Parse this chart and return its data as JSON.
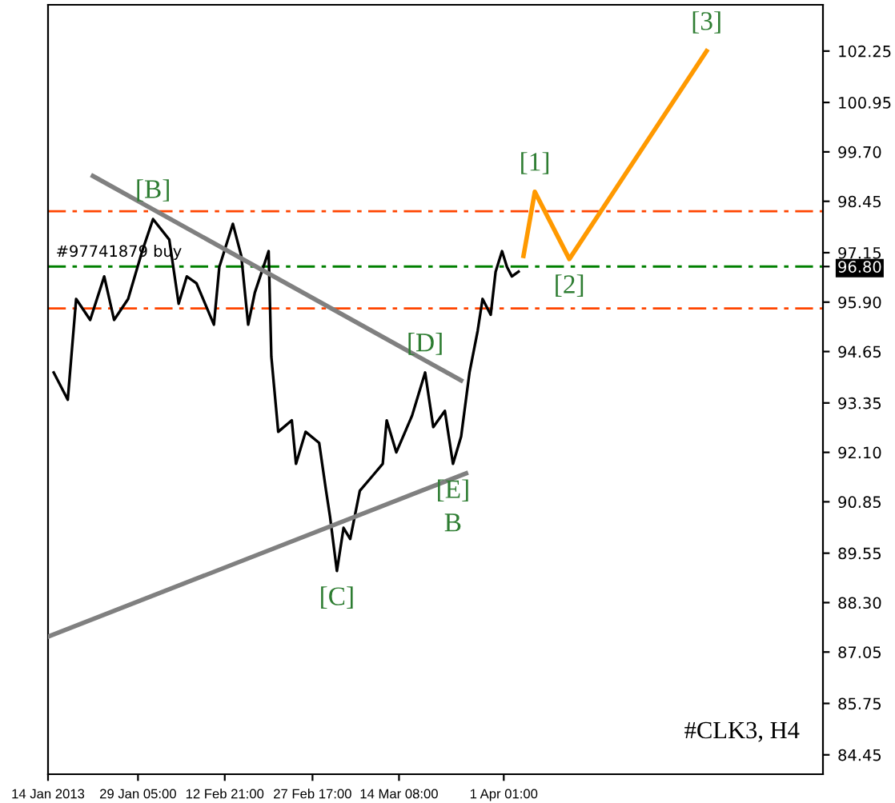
{
  "chart_data": {
    "type": "line",
    "xlim": [
      "2013-01-14T00:00",
      "2013-05-25T00:00"
    ],
    "ylim": [
      83.96,
      103.42
    ],
    "xticks": [
      {
        "value": "2013-01-14T00:00",
        "label": "14 Jan 2013"
      },
      {
        "value": "2013-01-29T05:00",
        "label": "29 Jan 05:00"
      },
      {
        "value": "2013-02-12T21:00",
        "label": "12 Feb 21:00"
      },
      {
        "value": "2013-02-27T17:00",
        "label": "27 Feb 17:00"
      },
      {
        "value": "2013-03-14T08:00",
        "label": "14 Mar 08:00"
      },
      {
        "value": "2013-04-01T01:00",
        "label": "1 Apr 01:00"
      }
    ],
    "yticks": [
      102.25,
      100.95,
      {
        "value": 99.7,
        "label": "99.70"
      },
      98.45,
      97.15,
      {
        "value": 96.8,
        "label": "96.80"
      },
      {
        "value": 95.9,
        "label": "95.90"
      },
      94.65,
      93.35,
      {
        "value": 92.1,
        "label": "92.10"
      },
      90.85,
      89.55,
      {
        "value": 88.3,
        "label": "88.30"
      },
      87.05,
      85.75,
      84.45
    ],
    "grid": false,
    "series": [
      {
        "color": "#000000",
        "x": [
          "2013-01-14T23:00",
          "2013-01-17T08:00",
          "2013-01-18T18:00",
          "2013-01-21T03:00",
          "2013-01-23T12:00",
          "2013-01-25T04:00",
          "2013-01-27T13:00",
          "2013-01-29T22:00",
          "2013-01-31T18:00",
          "2013-02-03T12:00",
          "2013-02-05T02:00",
          "2013-02-06T11:00",
          "2013-02-08T02:00",
          "2013-02-11T01:00",
          "2013-02-11T23:00",
          "2013-02-14T06:00",
          "2013-02-15T16:00",
          "2013-02-16T20:00",
          "2013-02-17T23:00",
          "2013-02-20T07:00",
          "2013-02-20T18:00",
          "2013-02-21T22:00",
          "2013-02-24T05:00",
          "2013-02-24T22:00",
          "2013-02-26T13:00",
          "2013-02-28T20:00",
          "2013-03-02T00:00",
          "2013-03-02T16:00",
          "2013-03-03T20:00",
          "2013-03-04T23:00",
          "2013-03-06T02:00",
          "2013-03-07T17:00",
          "2013-03-10T00:00",
          "2013-03-11T14:00",
          "2013-03-12T06:00",
          "2013-03-13T21:00",
          "2013-03-16T13:00",
          "2013-03-18T18:00",
          "2013-03-20T03:00",
          "2013-03-22T02:00",
          "2013-03-23T11:00",
          "2013-03-24T20:00",
          "2013-03-26T06:00",
          "2013-03-27T15:00",
          "2013-03-28T11:00",
          "2013-03-29T20:00",
          "2013-03-30T16:00",
          "2013-03-31T18:00",
          "2013-04-01T14:00",
          "2013-04-02T10:00",
          "2013-04-03T13:00"
        ],
        "values": [
          94.12,
          93.43,
          95.98,
          95.45,
          96.55,
          95.45,
          95.98,
          97.19,
          98.0,
          97.48,
          95.86,
          96.55,
          96.38,
          95.33,
          96.79,
          97.88,
          97.07,
          95.33,
          96.14,
          97.19,
          94.52,
          92.62,
          92.91,
          91.81,
          92.62,
          92.34,
          91.13,
          90.48,
          89.1,
          90.19,
          89.91,
          91.13,
          91.53,
          91.81,
          92.91,
          92.1,
          93.03,
          94.12,
          92.74,
          93.15,
          91.81,
          92.5,
          94.12,
          95.17,
          95.98,
          95.58,
          96.67,
          97.19,
          96.79,
          96.55,
          96.67
        ]
      },
      {
        "color": "#808080",
        "x": [
          "2013-01-21T14:00",
          "2013-03-24T20:00"
        ],
        "values": [
          99.09,
          93.92
        ]
      },
      {
        "color": "#808080",
        "x": [
          "2013-01-14T00:00",
          "2013-03-25T16:00"
        ],
        "values": [
          87.44,
          91.57
        ]
      },
      {
        "color": "#ff9900",
        "x": [
          "2013-04-04T09:00",
          "2013-04-06T07:00",
          "2013-04-12T03:00",
          "2013-05-05T08:00"
        ],
        "values": [
          97.07,
          98.69,
          96.99,
          102.25
        ]
      }
    ],
    "ref_lines": [
      {
        "axis": "y",
        "value": 98.2,
        "color": "#ff4500",
        "line_style": "dashed"
      },
      {
        "axis": "y",
        "value": 96.8,
        "label": "#97741879 buy",
        "color": "#008000",
        "line_style": "dashed"
      },
      {
        "axis": "y",
        "value": 95.74,
        "color": "#ff4500",
        "line_style": "dashed"
      }
    ],
    "annotations": [
      {
        "text": "[B]",
        "x": "2013-01-31T18:00",
        "y": 98.0
      },
      {
        "text": "[C]",
        "x": "2013-03-03T20:00",
        "y": 89.1
      },
      {
        "text": "[D]",
        "x": "2013-03-18T18:00",
        "y": 94.12
      },
      {
        "text": "[E]",
        "x": "2013-03-23T11:00",
        "y": 91.81
      },
      {
        "text": "B",
        "x": "2013-03-23T11:00",
        "y": 91.81
      },
      {
        "text": "[1]",
        "x": "2013-04-06T07:00",
        "y": 98.69
      },
      {
        "text": "[2]",
        "x": "2013-04-12T03:00",
        "y": 96.99
      },
      {
        "text": "[3]",
        "x": "2013-05-05T08:00",
        "y": 102.25
      },
      "#CLK3, H4"
    ]
  }
}
